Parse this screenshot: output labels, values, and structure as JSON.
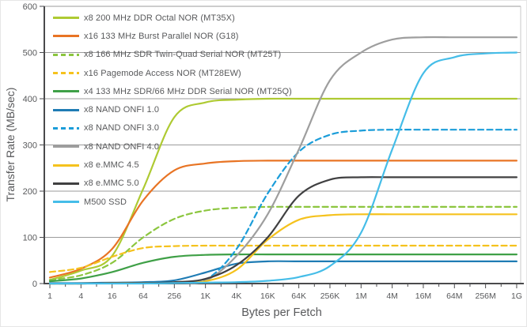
{
  "chart_data": {
    "type": "line",
    "title": "",
    "xlabel": "Bytes per Fetch",
    "ylabel": "Transfer Rate (MB/sec)",
    "x_scale": "log4",
    "x_ticks": [
      "1",
      "4",
      "16",
      "64",
      "256",
      "1K",
      "4K",
      "16K",
      "64K",
      "256K",
      "1M",
      "4M",
      "16M",
      "64M",
      "256M",
      "1G"
    ],
    "y_ticks": [
      0,
      100,
      200,
      300,
      400,
      500,
      600
    ],
    "ylim": [
      0,
      600
    ],
    "grid": "horizontal",
    "legend_position": "top-left-inside",
    "axis_color": "#4a4a4c",
    "grid_color": "#9b9b9b",
    "text_color": "#58595b",
    "series": [
      {
        "id": "mt35x",
        "name": "x8 200 MHz DDR Octal NOR (MT35X)",
        "color": "#aeca32",
        "dash": "solid",
        "values": [
          8,
          28,
          60,
          205,
          360,
          392,
          398,
          400,
          400,
          400,
          400,
          400,
          400,
          400,
          400,
          400
        ]
      },
      {
        "id": "g18",
        "name": "x16 133 MHz Burst Parallel NOR (G18)",
        "color": "#e87424",
        "dash": "solid",
        "values": [
          13,
          32,
          75,
          180,
          245,
          260,
          265,
          266,
          266,
          266,
          266,
          266,
          266,
          266,
          266,
          266
        ]
      },
      {
        "id": "mt25t",
        "name": "x8 166 MHz SDR Twin-Quad Serial NOR (MT25T)",
        "color": "#8cc63f",
        "dash": "dashed",
        "values": [
          8,
          18,
          45,
          100,
          140,
          158,
          164,
          166,
          166,
          166,
          166,
          166,
          166,
          166,
          166,
          166
        ]
      },
      {
        "id": "mt28ew",
        "name": "x16 Pagemode Access NOR (MT28EW)",
        "color": "#f5c21d",
        "dash": "dashed",
        "values": [
          25,
          34,
          58,
          77,
          81,
          82,
          82,
          82,
          82,
          82,
          82,
          82,
          82,
          82,
          82,
          82
        ]
      },
      {
        "id": "mt25q",
        "name": "x4 133 MHz SDR/66 MHz DDR Serial NOR (MT25Q)",
        "color": "#3fa047",
        "dash": "solid",
        "values": [
          5,
          11,
          25,
          45,
          58,
          62,
          63,
          63,
          63,
          63,
          63,
          63,
          63,
          63,
          63,
          63
        ]
      },
      {
        "id": "onfi10",
        "name": "x8 NAND ONFI 1.0",
        "color": "#1f7cb4",
        "dash": "solid",
        "values": [
          1,
          1,
          2,
          3,
          7,
          24,
          43,
          48,
          48,
          48,
          48,
          48,
          48,
          48,
          48,
          48
        ]
      },
      {
        "id": "onfi30",
        "name": "x8 NAND ONFI 3.0",
        "color": "#1b9dd9",
        "dash": "dashed",
        "values": [
          0,
          0,
          1,
          1,
          2,
          8,
          75,
          195,
          285,
          322,
          331,
          333,
          333,
          333,
          333,
          333
        ]
      },
      {
        "id": "onfi40",
        "name": "x8 NAND ONFI 4.0",
        "color": "#9e9e9e",
        "dash": "solid",
        "values": [
          0,
          0,
          1,
          1,
          2,
          6,
          60,
          150,
          290,
          440,
          500,
          528,
          533,
          533,
          533,
          533
        ]
      },
      {
        "id": "emmc45",
        "name": "x8 e.MMC 4.5",
        "color": "#f5c21d",
        "dash": "solid",
        "values": [
          0,
          0,
          1,
          1,
          2,
          5,
          30,
          95,
          138,
          148,
          150,
          150,
          150,
          150,
          150,
          150
        ]
      },
      {
        "id": "emmc50",
        "name": "x8 e.MMC 5.0",
        "color": "#404041",
        "dash": "solid",
        "values": [
          0,
          0,
          1,
          1,
          3,
          10,
          40,
          100,
          190,
          225,
          230,
          230,
          230,
          230,
          230,
          230
        ]
      },
      {
        "id": "m500",
        "name": "M500 SSD",
        "color": "#45bde8",
        "dash": "solid",
        "values": [
          0,
          0,
          0,
          0,
          1,
          2,
          3,
          6,
          14,
          38,
          110,
          290,
          455,
          490,
          498,
          500
        ]
      }
    ]
  }
}
